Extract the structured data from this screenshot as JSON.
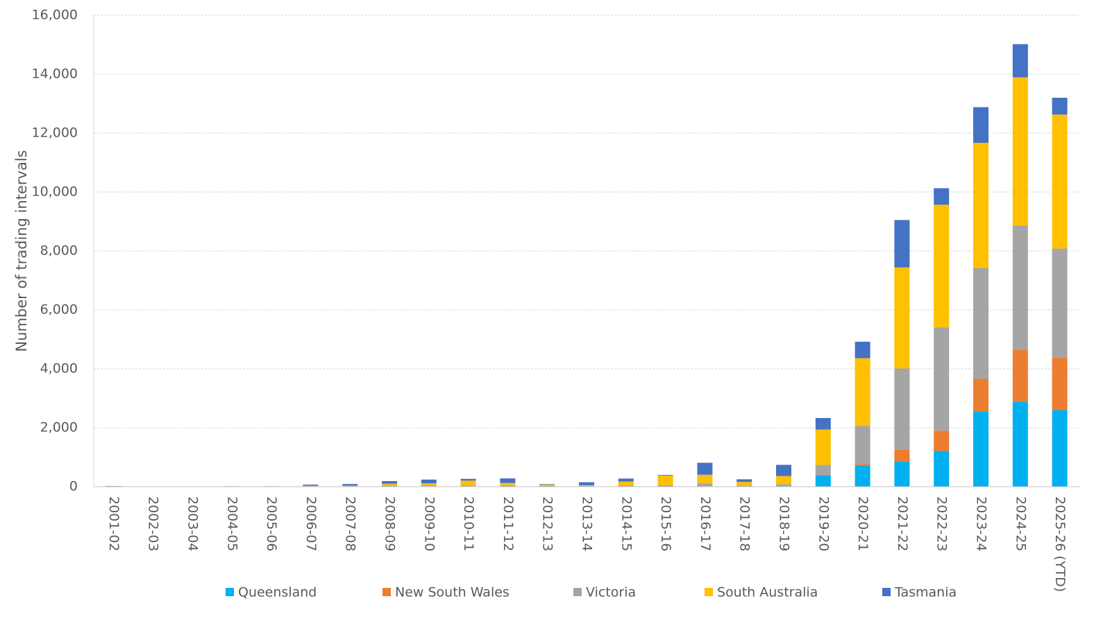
{
  "chart_data": {
    "type": "bar",
    "stacked": true,
    "title": "",
    "xlabel": "",
    "ylabel": "Number of trading intervals",
    "ylim": [
      0,
      16000
    ],
    "yticks": [
      0,
      2000,
      4000,
      6000,
      8000,
      10000,
      12000,
      14000,
      16000
    ],
    "ytick_labels": [
      "0",
      "2,000",
      "4,000",
      "6,000",
      "8,000",
      "10,000",
      "12,000",
      "14,000",
      "16,000"
    ],
    "grid": true,
    "legend_position": "bottom",
    "categories": [
      "2001-02",
      "2002-03",
      "2003-04",
      "2004-05",
      "2005-06",
      "2006-07",
      "2007-08",
      "2008-09",
      "2009-10",
      "2010-11",
      "2011-12",
      "2012-13",
      "2013-14",
      "2014-15",
      "2015-16",
      "2016-17",
      "2017-18",
      "2018-19",
      "2019-20",
      "2020-21",
      "2021-22",
      "2022-23",
      "2023-24",
      "2024-25",
      "2025-26 (YTD)"
    ],
    "series": [
      {
        "name": "Queensland",
        "color": "#00B0F0",
        "values": [
          2,
          0,
          0,
          2,
          2,
          5,
          5,
          10,
          15,
          15,
          10,
          5,
          5,
          10,
          10,
          15,
          10,
          20,
          380,
          720,
          850,
          1210,
          2560,
          2880,
          2600
        ]
      },
      {
        "name": "New South Wales",
        "color": "#ED7D31",
        "values": [
          0,
          0,
          0,
          0,
          0,
          0,
          0,
          0,
          0,
          0,
          0,
          0,
          0,
          0,
          0,
          0,
          0,
          0,
          10,
          50,
          400,
          690,
          1100,
          1770,
          1780
        ]
      },
      {
        "name": "Victoria",
        "color": "#A5A5A5",
        "values": [
          3,
          2,
          2,
          3,
          3,
          20,
          15,
          30,
          30,
          20,
          25,
          30,
          25,
          25,
          40,
          90,
          30,
          60,
          350,
          1290,
          2760,
          3500,
          3760,
          4210,
          3700
        ]
      },
      {
        "name": "South Australia",
        "color": "#FFC000",
        "values": [
          2,
          10,
          10,
          2,
          2,
          10,
          15,
          60,
          70,
          170,
          90,
          40,
          20,
          140,
          330,
          300,
          120,
          280,
          1200,
          2300,
          3430,
          4170,
          4250,
          5030,
          4550
        ]
      },
      {
        "name": "Tasmania",
        "color": "#4472C4",
        "values": [
          13,
          0,
          0,
          8,
          8,
          35,
          55,
          90,
          125,
          60,
          155,
          15,
          100,
          100,
          20,
          405,
          90,
          380,
          390,
          560,
          1610,
          560,
          1210,
          1130,
          570
        ]
      }
    ]
  }
}
